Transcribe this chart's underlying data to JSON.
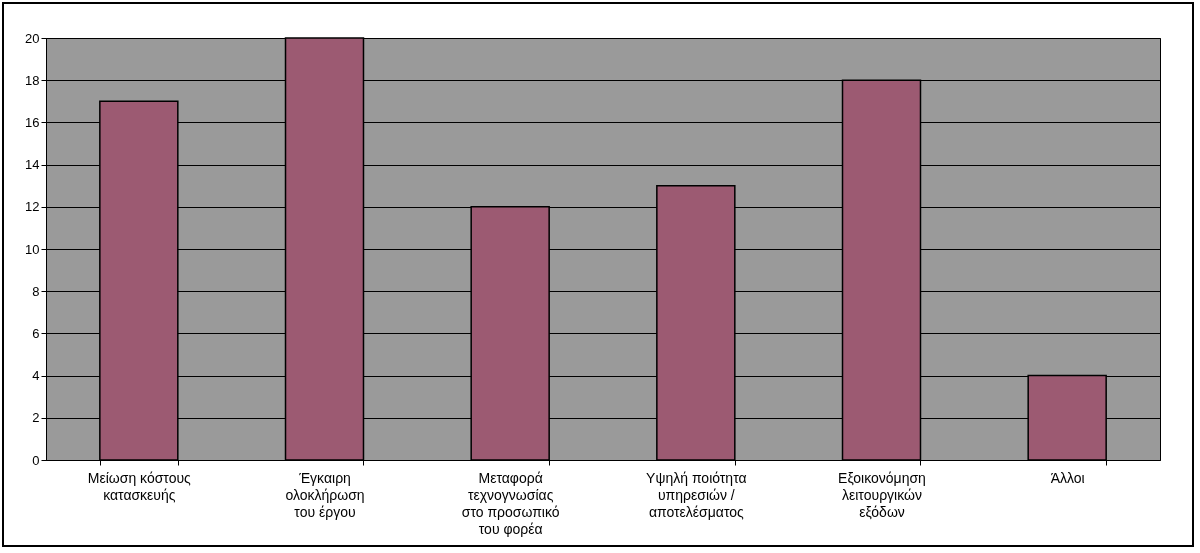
{
  "chart_data": {
    "type": "bar",
    "categories": [
      "Μείωση κόστους\nκατασκευής",
      "Έγκαιρη\nολοκλήρωση\nτου έργου",
      "Μεταφορά\nτεχνογνωσίας\nστο προσωπικό\nτου φορέα",
      "Υψηλή ποιότητα\nυπηρεσιών /\nαποτελέσματος",
      "Εξοικονόμηση\nλειτουργικών\nεξόδων",
      "Άλλοι"
    ],
    "values": [
      17,
      20,
      12,
      13,
      18,
      4
    ],
    "color": "#9c5a72",
    "ylim": [
      0,
      20
    ],
    "yticks": [
      0,
      2,
      4,
      6,
      8,
      10,
      12,
      14,
      16,
      18,
      20
    ],
    "grid": "y"
  }
}
